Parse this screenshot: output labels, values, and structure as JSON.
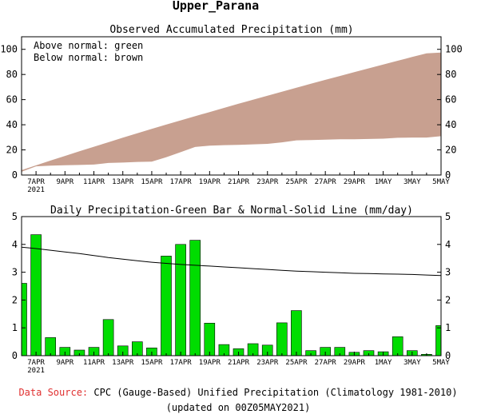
{
  "page_title": "Upper_Parana",
  "source": {
    "label": "Data Source:",
    "text": "CPC (Gauge-Based) Unified Precipitation (Climatology 1981-2010)",
    "updated": "(updated on 00Z05MAY2021)",
    "label_color": "#e03030"
  },
  "x_tick_labels": [
    "7APR",
    "9APR",
    "11APR",
    "13APR",
    "15APR",
    "17APR",
    "19APR",
    "21APR",
    "23APR",
    "25APR",
    "27APR",
    "29APR",
    "1MAY",
    "3MAY",
    "5MAY"
  ],
  "x_year_label": "2021",
  "chart_data": [
    {
      "type": "area",
      "title": "Observed Accumulated Precipitation (mm)",
      "annotations": [
        "Above normal: green",
        "Below normal: brown"
      ],
      "x": [
        "6APR",
        "7APR",
        "8APR",
        "9APR",
        "10APR",
        "11APR",
        "12APR",
        "13APR",
        "14APR",
        "15APR",
        "16APR",
        "17APR",
        "18APR",
        "19APR",
        "20APR",
        "21APR",
        "22APR",
        "23APR",
        "24APR",
        "25APR",
        "26APR",
        "27APR",
        "28APR",
        "29APR",
        "30APR",
        "1MAY",
        "2MAY",
        "3MAY",
        "4MAY",
        "5MAY"
      ],
      "series": [
        {
          "name": "Observed",
          "values": [
            2.6,
            6.9,
            7.5,
            7.8,
            8.0,
            8.3,
            9.6,
            9.9,
            10.4,
            10.7,
            14.2,
            18.2,
            22.3,
            23.4,
            23.8,
            24.0,
            24.4,
            24.8,
            26.0,
            27.6,
            27.8,
            28.1,
            28.4,
            28.5,
            28.7,
            28.9,
            29.6,
            29.8,
            29.8,
            30.9
          ]
        },
        {
          "name": "Normal",
          "values": [
            3.9,
            7.7,
            11.5,
            15.2,
            18.9,
            22.5,
            26.1,
            29.7,
            33.2,
            36.7,
            40.1,
            43.5,
            46.8,
            50.1,
            53.4,
            56.7,
            59.9,
            63.1,
            66.3,
            69.5,
            72.6,
            75.7,
            78.8,
            81.9,
            84.9,
            87.9,
            90.9,
            93.9,
            96.8,
            97.5
          ]
        }
      ],
      "fill_colors": {
        "above": "#00dd00",
        "below": "#c8a090"
      },
      "ylim": [
        0,
        110
      ],
      "yticks": [
        0,
        20,
        40,
        60,
        80,
        100
      ],
      "grid": false
    },
    {
      "type": "bar",
      "title": "Daily Precipitation-Green Bar & Normal-Solid Line (mm/day)",
      "x": [
        "6APR",
        "7APR",
        "8APR",
        "9APR",
        "10APR",
        "11APR",
        "12APR",
        "13APR",
        "14APR",
        "15APR",
        "16APR",
        "17APR",
        "18APR",
        "19APR",
        "20APR",
        "21APR",
        "22APR",
        "23APR",
        "24APR",
        "25APR",
        "26APR",
        "27APR",
        "28APR",
        "29APR",
        "30APR",
        "1MAY",
        "2MAY",
        "3MAY",
        "4MAY",
        "5MAY"
      ],
      "series": [
        {
          "name": "Daily precipitation",
          "values": [
            2.6,
            4.35,
            0.65,
            0.3,
            0.2,
            0.3,
            1.3,
            0.35,
            0.5,
            0.28,
            3.58,
            4.0,
            4.15,
            1.17,
            0.4,
            0.25,
            0.43,
            0.38,
            1.18,
            1.62,
            0.18,
            0.3,
            0.3,
            0.12,
            0.18,
            0.14,
            0.68,
            0.18,
            0.05,
            1.08
          ]
        },
        {
          "name": "Normal",
          "values": [
            3.9,
            3.85,
            3.79,
            3.73,
            3.67,
            3.6,
            3.53,
            3.47,
            3.41,
            3.36,
            3.32,
            3.28,
            3.25,
            3.22,
            3.19,
            3.16,
            3.13,
            3.1,
            3.07,
            3.04,
            3.02,
            3.0,
            2.98,
            2.96,
            2.95,
            2.94,
            2.93,
            2.92,
            2.9,
            2.88
          ]
        }
      ],
      "bar_color": "#00dd00",
      "line_color": "#000000",
      "ylim": [
        0,
        5
      ],
      "yticks": [
        0,
        1,
        2,
        3,
        4,
        5
      ],
      "grid": false
    }
  ]
}
